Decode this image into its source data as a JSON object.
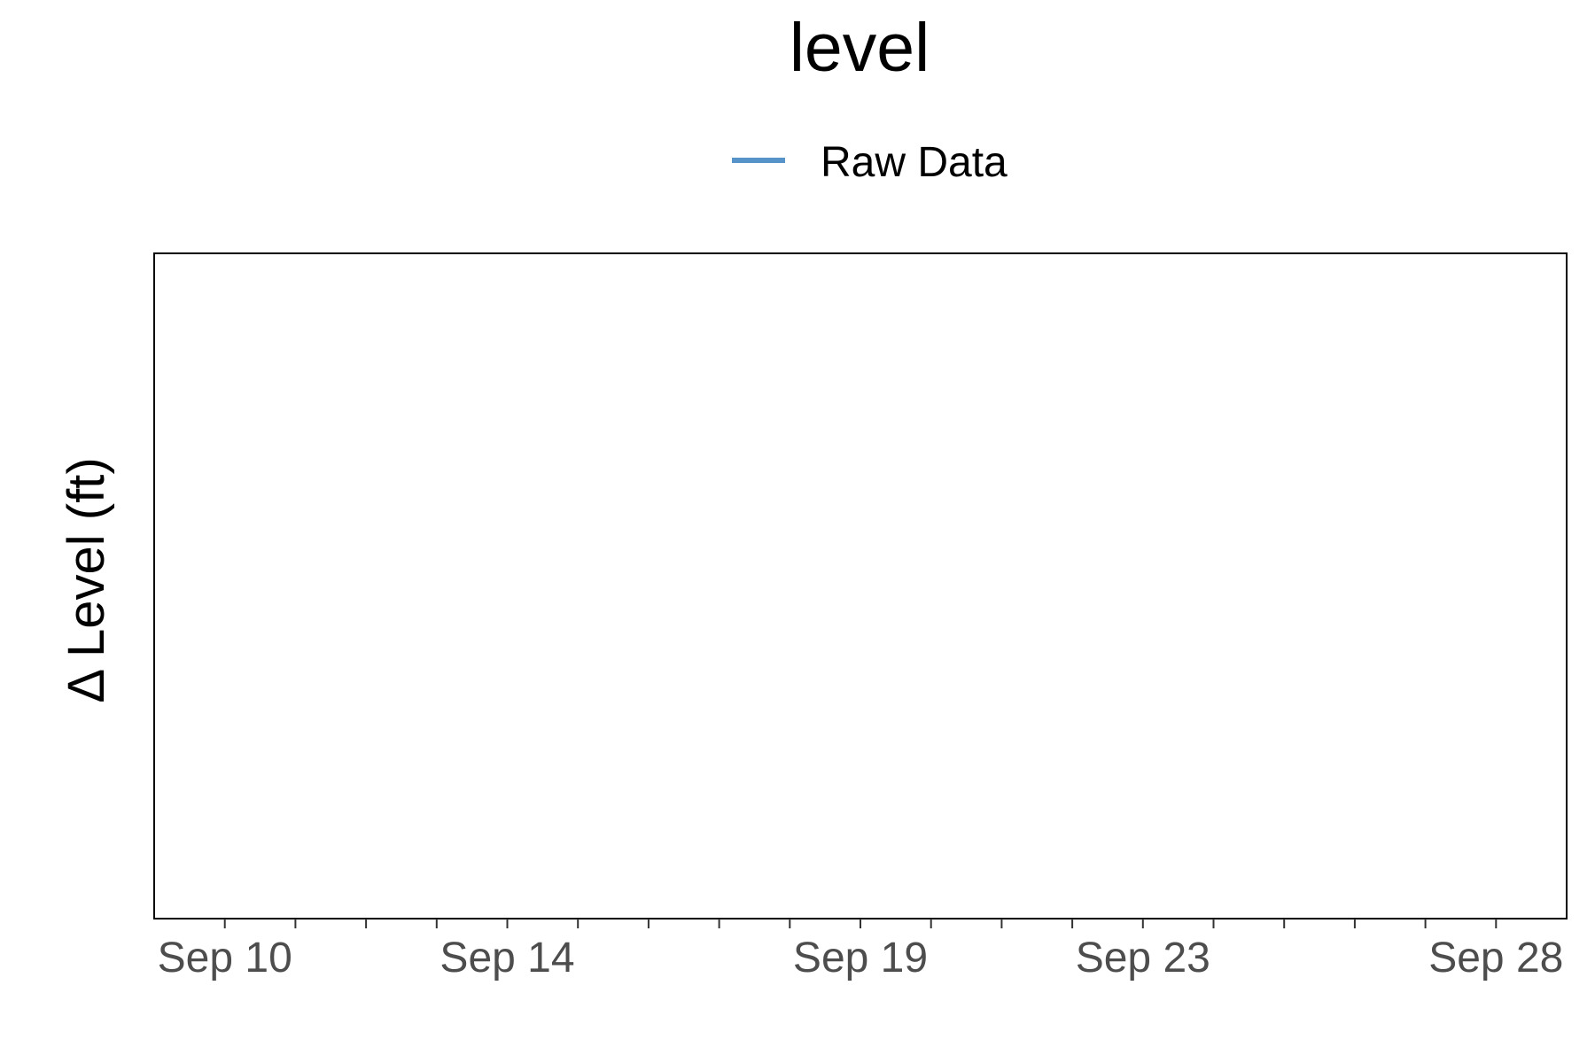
{
  "chart_data": {
    "type": "line",
    "title": "level",
    "xlabel": "",
    "ylabel": "Δ Level (ft)",
    "x_axis": {
      "scale": "date",
      "range": [
        "2020-09-09",
        "2020-09-29"
      ],
      "tick_labels": [
        {
          "label": "Sep 10",
          "date": "2020-09-10"
        },
        {
          "label": "Sep 14",
          "date": "2020-09-14"
        },
        {
          "label": "Sep 19",
          "date": "2020-09-19"
        },
        {
          "label": "Sep 23",
          "date": "2020-09-23"
        },
        {
          "label": "Sep 28",
          "date": "2020-09-28"
        }
      ],
      "minor_ticks": [
        "2020-09-11",
        "2020-09-12",
        "2020-09-13",
        "2020-09-15",
        "2020-09-16",
        "2020-09-17",
        "2020-09-18",
        "2020-09-20",
        "2020-09-21",
        "2020-09-22",
        "2020-09-24",
        "2020-09-25",
        "2020-09-26",
        "2020-09-27"
      ]
    },
    "series": [
      {
        "name": "Raw Data",
        "color": "#5593c8",
        "points": []
      }
    ],
    "legend_position": "top",
    "grid": false
  }
}
